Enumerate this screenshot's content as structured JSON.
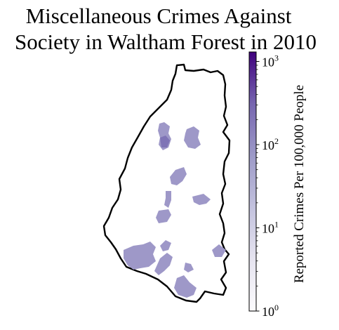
{
  "title_line1": "Miscellaneous Crimes Against",
  "title_line2": "Society in Waltham Forest in 2010",
  "colorbar": {
    "label": "Reported Crimes Per 100,000 People",
    "scale": "log",
    "range": [
      1,
      1300
    ],
    "colormap": "Purples",
    "ticks": [
      {
        "base": "10",
        "exp": "0",
        "value": 1
      },
      {
        "base": "10",
        "exp": "1",
        "value": 10
      },
      {
        "base": "10",
        "exp": "2",
        "value": 100
      },
      {
        "base": "10",
        "exp": "3",
        "value": 1000
      }
    ]
  },
  "map": {
    "borough": "Waltham Forest",
    "boundary_color": "#000000",
    "region_fill": "#9e98c8",
    "region_fill_dark": "#7f74b6"
  }
}
